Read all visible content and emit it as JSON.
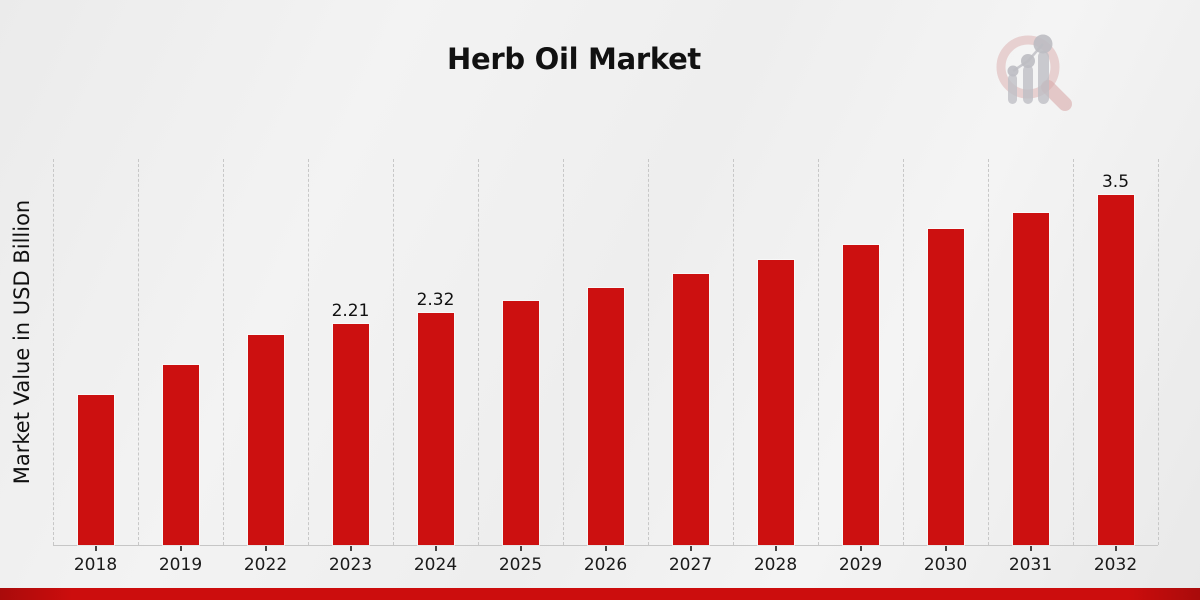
{
  "page": {
    "title": "Herb Oil Market"
  },
  "chart_data": {
    "type": "bar",
    "title": "Herb Oil Market",
    "xlabel": "",
    "ylabel": "Market Value in USD Billion",
    "categories": [
      "2018",
      "2019",
      "2022",
      "2023",
      "2024",
      "2025",
      "2026",
      "2027",
      "2028",
      "2029",
      "2030",
      "2031",
      "2032"
    ],
    "values": [
      1.5,
      1.8,
      2.1,
      2.21,
      2.32,
      2.44,
      2.57,
      2.71,
      2.85,
      3.0,
      3.16,
      3.32,
      3.5
    ],
    "bar_labels": [
      "",
      "",
      "",
      "2.21",
      "2.32",
      "",
      "",
      "",
      "",
      "",
      "",
      "",
      "3.5"
    ],
    "ylim": [
      0,
      3.86
    ],
    "grid": "vertical-dashed",
    "legend": "none",
    "bar_color": "#cc1010"
  },
  "watermark": {
    "name": "magnifier-bar-chart-logo"
  },
  "colors": {
    "bar": "#cc1010",
    "bottom_strip": "#cc0d0d",
    "background": "#efefef",
    "gridline": "#c7c7c7",
    "text": "#111111",
    "logo_ring": "#dcb3b3",
    "logo_gray": "#bfbfc5"
  }
}
